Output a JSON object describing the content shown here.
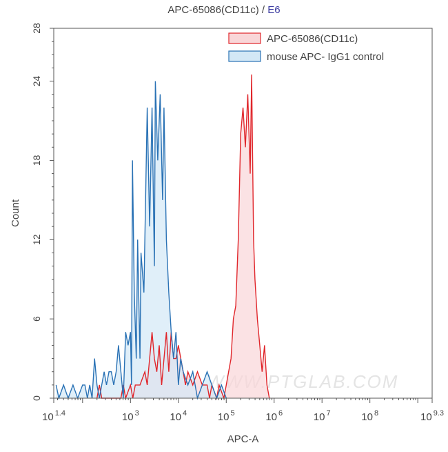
{
  "chart_data": {
    "type": "area",
    "title": "APC-65086(CD11c)",
    "title_suffix": "E6",
    "title_separator": "/",
    "xlabel": "APC-A",
    "ylabel": "Count",
    "x_scale": "log",
    "xlim": [
      25,
      1995262315
    ],
    "ylim": [
      0,
      28
    ],
    "x_ticks": [
      {
        "base": "10",
        "exp": "1.4",
        "value": 25
      },
      {
        "base": "10",
        "exp": "3",
        "value": 1000
      },
      {
        "base": "10",
        "exp": "4",
        "value": 10000
      },
      {
        "base": "10",
        "exp": "5",
        "value": 100000
      },
      {
        "base": "10",
        "exp": "6",
        "value": 1000000
      },
      {
        "base": "10",
        "exp": "7",
        "value": 10000000
      },
      {
        "base": "10",
        "exp": "8",
        "value": 100000000
      },
      {
        "base": "10",
        "exp": "9.3",
        "value": 1995262315
      }
    ],
    "y_ticks": [
      "0",
      "6",
      "12",
      "18",
      "24",
      "28"
    ],
    "grid": false,
    "legend_position": "top-right",
    "watermark": "WWW.PTGLAB.COM",
    "series": [
      {
        "name": "APC-65086(CD11c)",
        "color": "#e0262b",
        "fill": "#f9d6d8",
        "x": [
          200,
          224,
          251,
          631,
          708,
          794,
          1000,
          1120,
          1260,
          1580,
          2000,
          2240,
          2820,
          3160,
          3550,
          3980,
          4470,
          5620,
          6310,
          7080,
          7940,
          8910,
          10000,
          12600,
          14100,
          15800,
          20000,
          25100,
          31600,
          39800,
          44700,
          50100,
          63100,
          70800,
          89100,
          100000,
          112000,
          126000,
          141000,
          158000,
          178000,
          200000,
          224000,
          251000,
          282000,
          316000,
          339000,
          372000,
          398000,
          447000,
          501000,
          562000,
          631000,
          708000,
          794000
        ],
        "y": [
          0,
          1,
          0,
          0,
          1,
          0,
          1,
          0,
          1,
          1,
          2,
          1,
          5,
          3,
          2,
          4,
          1,
          5,
          2,
          5,
          3,
          3,
          4,
          2,
          1,
          2,
          1,
          2,
          1,
          1,
          0,
          1,
          0,
          1,
          0,
          1,
          2,
          3,
          6,
          7,
          12,
          20,
          22,
          19,
          23,
          17,
          24.5,
          12,
          9,
          6,
          4,
          2,
          4,
          1,
          0
        ]
      },
      {
        "name": "mouse APC- IgG1 control",
        "color": "#2a72b5",
        "fill": "#d3e8f6",
        "x": [
          28,
          32,
          40,
          50,
          63,
          79,
          100,
          112,
          126,
          141,
          158,
          178,
          200,
          224,
          251,
          282,
          316,
          355,
          398,
          447,
          501,
          562,
          631,
          708,
          794,
          891,
          1000,
          1050,
          1100,
          1200,
          1320,
          1410,
          1580,
          1660,
          1910,
          2240,
          2510,
          2820,
          3160,
          3310,
          3720,
          4170,
          4680,
          5010,
          5620,
          6310,
          7080,
          7940,
          8910,
          10000,
          11200,
          12600,
          15800,
          20000,
          25100,
          31600,
          39800,
          50100,
          63100,
          79400,
          100000
        ],
        "y": [
          1,
          0,
          1,
          0,
          1,
          0,
          1,
          1,
          0,
          1,
          0,
          3,
          1,
          0,
          1,
          2,
          1,
          2,
          2,
          1,
          2,
          4,
          2,
          0,
          5,
          4,
          5,
          1,
          18,
          8,
          3,
          12,
          3,
          11,
          8,
          22,
          13,
          22,
          10,
          24,
          18,
          23,
          15,
          22,
          12,
          8,
          5,
          3,
          5,
          1,
          3,
          2,
          1,
          2,
          0,
          1,
          2,
          1,
          0,
          1,
          0
        ]
      }
    ]
  }
}
